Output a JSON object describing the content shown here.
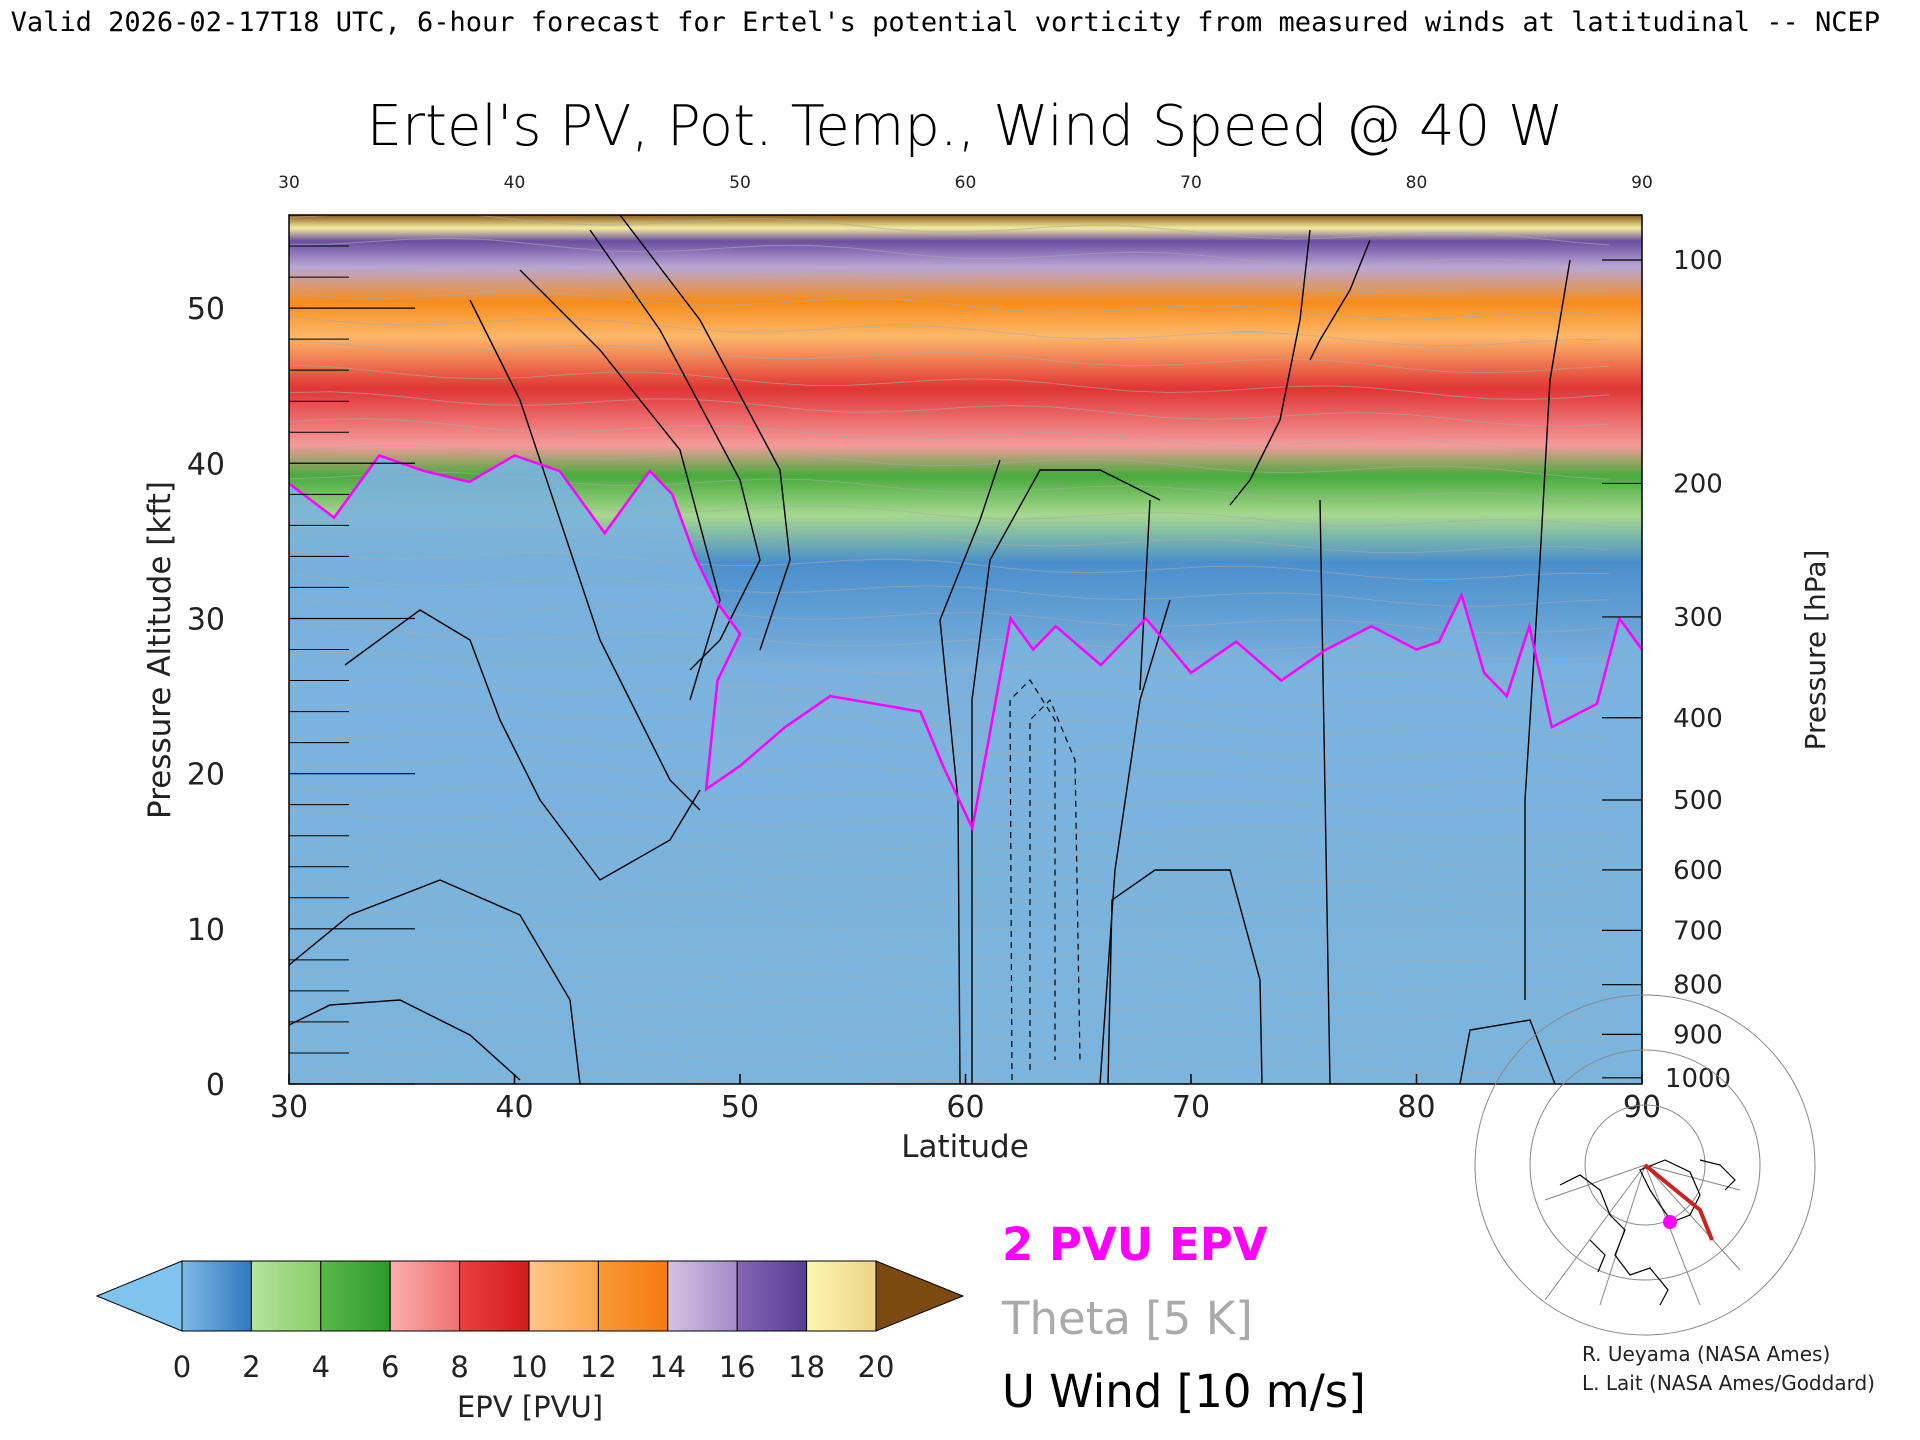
{
  "header": {
    "valid_line": "Valid 2026-02-17T18 UTC, 6-hour forecast for Ertel's potential vorticity from measured winds at latitudinal -- NCEP"
  },
  "chart_data": {
    "type": "heatmap",
    "title": "Ertel's PV, Pot. Temp., Wind Speed @ 40 W",
    "xlabel": "Latitude",
    "ylabel": "Pressure Altitude [kft]",
    "y2label": "Pressure [hPa]",
    "xlim": [
      30,
      90
    ],
    "ylim": [
      0,
      56
    ],
    "x_ticks": [
      "30",
      "40",
      "50",
      "60",
      "70",
      "80",
      "90"
    ],
    "y_ticks": [
      "0",
      "10",
      "20",
      "30",
      "40",
      "50"
    ],
    "pressure_ticks": [
      {
        "label": "100",
        "kft": 53.1
      },
      {
        "label": "200",
        "kft": 38.7
      },
      {
        "label": "300",
        "kft": 30.1
      },
      {
        "label": "400",
        "kft": 23.6
      },
      {
        "label": "500",
        "kft": 18.3
      },
      {
        "label": "600",
        "kft": 13.8
      },
      {
        "label": "700",
        "kft": 9.9
      },
      {
        "label": "800",
        "kft": 6.4
      },
      {
        "label": "900",
        "kft": 3.2
      },
      {
        "label": "1000",
        "kft": 0.4
      }
    ],
    "tropopause_2pvu": [
      {
        "lat": 30,
        "kft": 38.7
      },
      {
        "lat": 32,
        "kft": 36.5
      },
      {
        "lat": 34,
        "kft": 40.5
      },
      {
        "lat": 36,
        "kft": 39.5
      },
      {
        "lat": 38,
        "kft": 38.8
      },
      {
        "lat": 40,
        "kft": 40.5
      },
      {
        "lat": 42,
        "kft": 39.5
      },
      {
        "lat": 44,
        "kft": 35.5
      },
      {
        "lat": 46,
        "kft": 39.5
      },
      {
        "lat": 47,
        "kft": 38
      },
      {
        "lat": 48,
        "kft": 34
      },
      {
        "lat": 49,
        "kft": 31
      },
      {
        "lat": 50,
        "kft": 29
      },
      {
        "lat": 49,
        "kft": 26
      },
      {
        "lat": 48.5,
        "kft": 19
      },
      {
        "lat": 50,
        "kft": 20.5
      },
      {
        "lat": 52,
        "kft": 23
      },
      {
        "lat": 54,
        "kft": 25
      },
      {
        "lat": 56,
        "kft": 24.5
      },
      {
        "lat": 58,
        "kft": 24
      },
      {
        "lat": 59,
        "kft": 20.5
      },
      {
        "lat": 60.3,
        "kft": 16.5
      },
      {
        "lat": 61,
        "kft": 22
      },
      {
        "lat": 62,
        "kft": 30
      },
      {
        "lat": 63,
        "kft": 28
      },
      {
        "lat": 64,
        "kft": 29.5
      },
      {
        "lat": 66,
        "kft": 27
      },
      {
        "lat": 68,
        "kft": 30
      },
      {
        "lat": 70,
        "kft": 26.5
      },
      {
        "lat": 72,
        "kft": 28.5
      },
      {
        "lat": 74,
        "kft": 26
      },
      {
        "lat": 76,
        "kft": 28
      },
      {
        "lat": 78,
        "kft": 29.5
      },
      {
        "lat": 80,
        "kft": 28
      },
      {
        "lat": 81,
        "kft": 28.5
      },
      {
        "lat": 82,
        "kft": 31.5
      },
      {
        "lat": 83,
        "kft": 26.5
      },
      {
        "lat": 84,
        "kft": 25
      },
      {
        "lat": 85,
        "kft": 29.5
      },
      {
        "lat": 86,
        "kft": 23
      },
      {
        "lat": 88,
        "kft": 24.5
      },
      {
        "lat": 89,
        "kft": 30
      },
      {
        "lat": 90,
        "kft": 28
      }
    ],
    "colorbar": {
      "label": "EPV [PVU]",
      "ticks": [
        "0",
        "2",
        "4",
        "6",
        "8",
        "10",
        "12",
        "14",
        "16",
        "18",
        "20"
      ],
      "under_color": "#7ec4ee",
      "over_color": "#7a4a10"
    },
    "legend": {
      "pvu_label": "2 PVU EPV",
      "theta_label": "Theta [5 K]",
      "wind_label": "U Wind [10 m/s]"
    },
    "colors": {
      "pvu_line": "#ff00ff",
      "theta_line": "#aaaaaa",
      "wind_line": "#000000"
    }
  },
  "credits": {
    "line1": "R. Ueyama (NASA Ames)",
    "line2": "L. Lait (NASA Ames/Goddard)"
  }
}
